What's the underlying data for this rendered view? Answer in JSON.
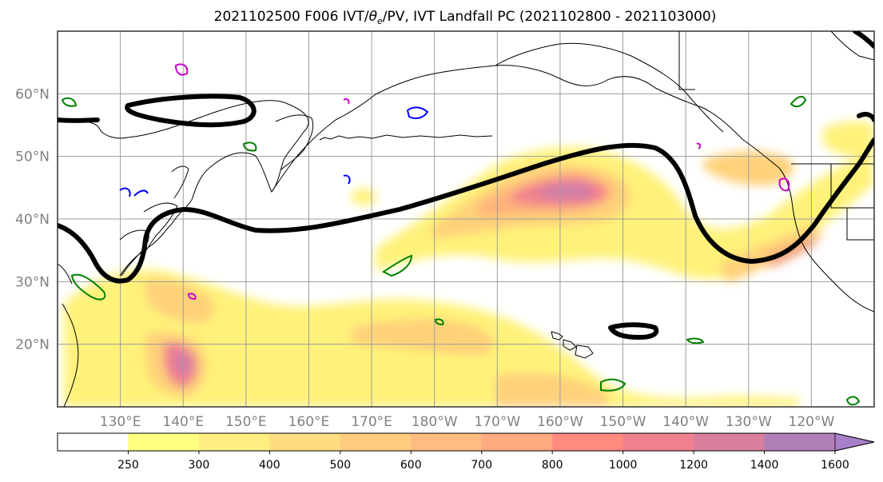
{
  "title": {
    "prefix": "2021102500 F006 IVT/",
    "theta": "θ",
    "theta_sub": "e",
    "suffix": "/PV, IVT Landfall PC (2021102800 - 2021103000)"
  },
  "map": {
    "lon_range_deg": [
      120,
      250
    ],
    "lat_range_deg": [
      10,
      70
    ],
    "lat_labels": [
      "60°N",
      "50°N",
      "40°N",
      "30°N",
      "20°N"
    ],
    "lat_values": [
      60,
      50,
      40,
      30,
      20
    ],
    "lon_labels": [
      "130°E",
      "140°E",
      "150°E",
      "160°E",
      "170°E",
      "180°W",
      "170°W",
      "160°W",
      "150°W",
      "140°W",
      "130°W",
      "120°W"
    ],
    "lon_values": [
      130,
      140,
      150,
      160,
      170,
      180,
      190,
      200,
      210,
      220,
      230,
      240
    ],
    "grid": true,
    "coastline_color": "#000000",
    "pc_contour_color": "#000000",
    "pv_contour_colors": [
      "#008000",
      "#0000ff",
      "#cc00cc"
    ]
  },
  "colorbar": {
    "levels": [
      "250",
      "300",
      "400",
      "500",
      "600",
      "700",
      "800",
      "1000",
      "1200",
      "1400",
      "1600"
    ],
    "colors": [
      "#ffffff",
      "#ffff80",
      "#ffee80",
      "#ffdd80",
      "#ffcc80",
      "#ffbb80",
      "#ffaa80",
      "#ff8a80",
      "#f08090",
      "#d87fa0",
      "#b07fb8",
      "#a87fc8"
    ],
    "extend": "max"
  }
}
